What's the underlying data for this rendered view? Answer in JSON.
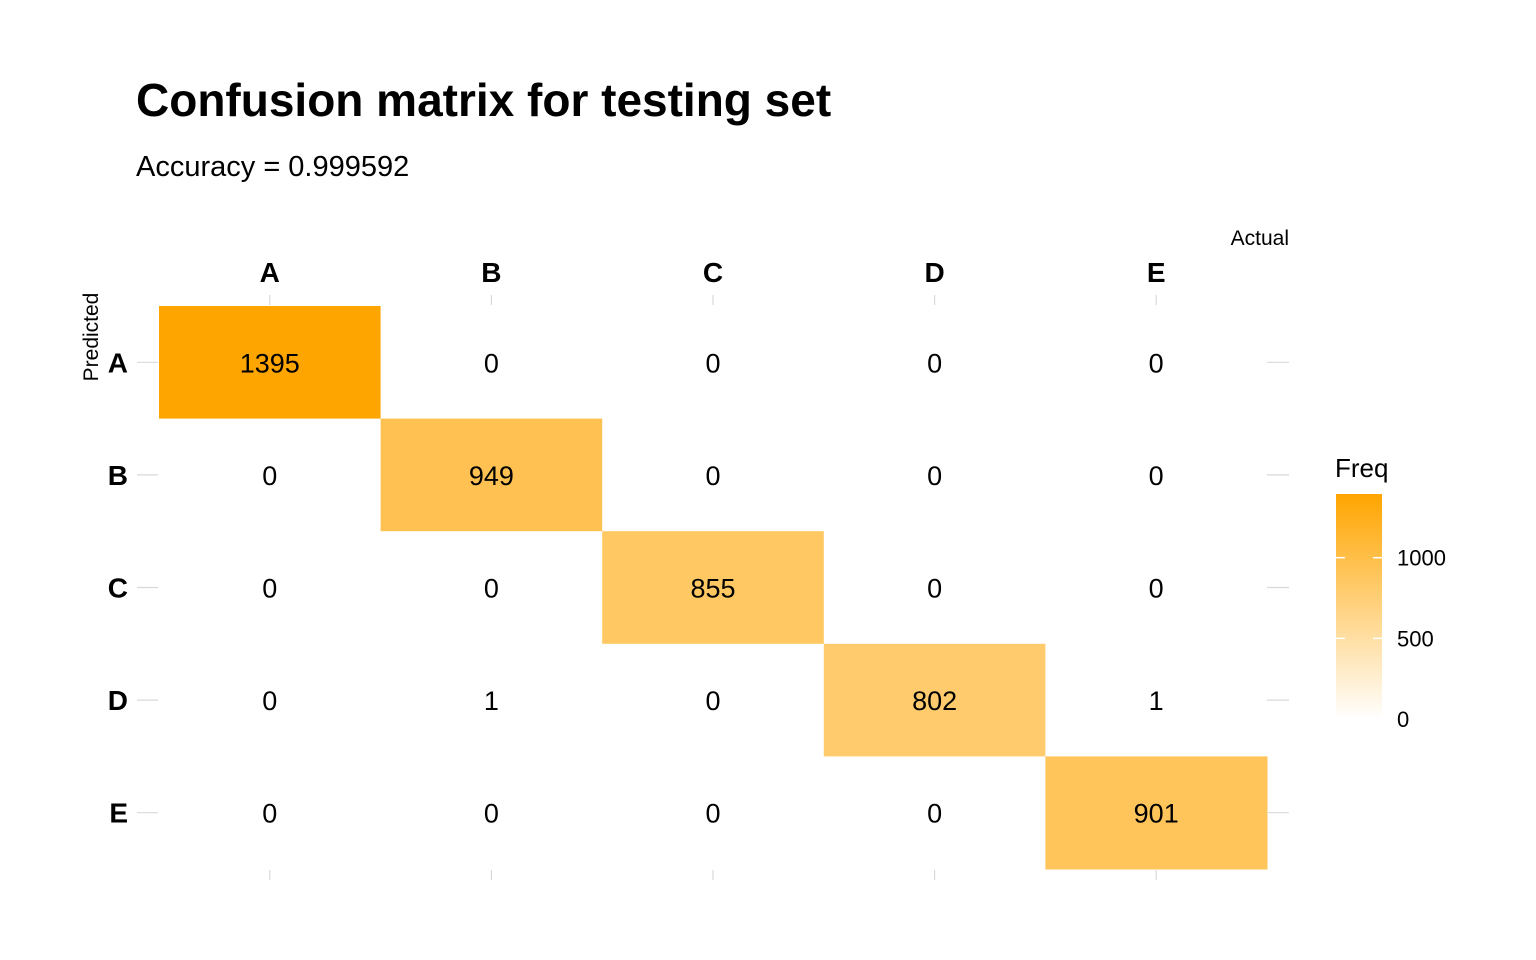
{
  "chart_data": {
    "type": "heatmap",
    "title": "Confusion matrix for testing set",
    "subtitle": "Accuracy = 0.999592",
    "x_axis_title": "Actual",
    "y_axis_title": "Predicted",
    "x_categories": [
      "A",
      "B",
      "C",
      "D",
      "E"
    ],
    "y_categories": [
      "A",
      "B",
      "C",
      "D",
      "E"
    ],
    "values": [
      [
        1395,
        0,
        0,
        0,
        0
      ],
      [
        0,
        949,
        0,
        0,
        0
      ],
      [
        0,
        0,
        855,
        0,
        0
      ],
      [
        0,
        1,
        0,
        802,
        1
      ],
      [
        0,
        0,
        0,
        0,
        901
      ]
    ],
    "x_axis_position": "top",
    "grid": false,
    "color_scale": {
      "low": "#ffffff",
      "high": "#ffa500",
      "min": 0,
      "max": 1395
    },
    "legend": {
      "title": "Freq",
      "ticks": [
        0,
        500,
        1000
      ],
      "placement": "right"
    }
  }
}
